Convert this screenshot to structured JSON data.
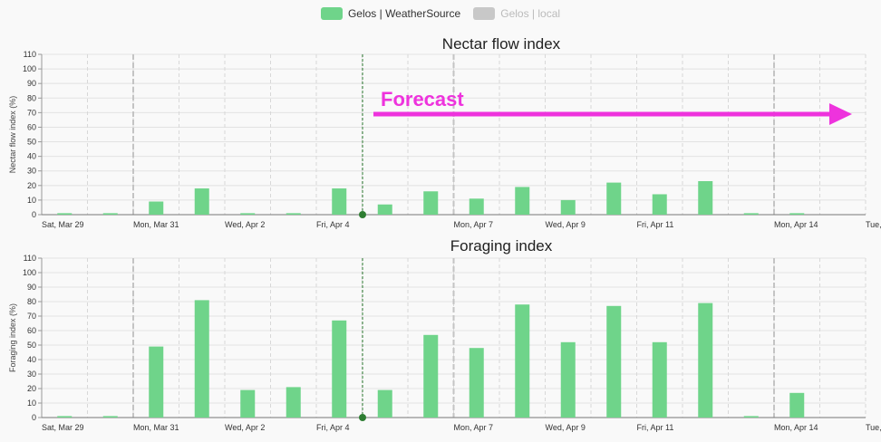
{
  "legend": [
    {
      "label": "Gelos | WeatherSource",
      "color": "#6fd48a",
      "active": true
    },
    {
      "label": "Gelos | local",
      "color": "#c8c8c8",
      "active": false
    }
  ],
  "forecast_label": "Forecast",
  "colors": {
    "bar": "#6fd48a",
    "today_line": "#2e7d32",
    "forecast_arrow": "#ee33dd"
  },
  "chart_data": [
    {
      "type": "bar",
      "title": "Nectar flow index",
      "ylabel": "Nectar flow index (%)",
      "ylim": [
        0,
        110
      ],
      "yticks": [
        0,
        10,
        20,
        30,
        40,
        50,
        60,
        70,
        80,
        90,
        100,
        110
      ],
      "x": [
        "2025-03-29",
        "2025-03-30",
        "2025-03-31",
        "2025-04-01",
        "2025-04-02",
        "2025-04-03",
        "2025-04-04",
        "2025-04-05",
        "2025-04-06",
        "2025-04-07",
        "2025-04-08",
        "2025-04-09",
        "2025-04-10",
        "2025-04-11",
        "2025-04-12",
        "2025-04-13",
        "2025-04-14",
        "2025-04-15"
      ],
      "xtick_labels": [
        "Sat, Mar 29",
        "Mon, Mar 31",
        "Wed, Apr 2",
        "Fri, Apr 4",
        "Mon, Apr 7",
        "Wed, Apr 9",
        "Fri, Apr 11",
        "Mon, Apr 14",
        "Tue,"
      ],
      "series": [
        {
          "name": "Gelos | WeatherSource",
          "values": [
            1,
            1,
            9,
            18,
            1,
            1,
            18,
            7,
            16,
            11,
            19,
            10,
            22,
            14,
            23,
            1,
            1,
            null
          ]
        }
      ]
    },
    {
      "type": "bar",
      "title": "Foraging index",
      "ylabel": "Foraging index (%)",
      "ylim": [
        0,
        110
      ],
      "yticks": [
        0,
        10,
        20,
        30,
        40,
        50,
        60,
        70,
        80,
        90,
        100,
        110
      ],
      "x": [
        "2025-03-29",
        "2025-03-30",
        "2025-03-31",
        "2025-04-01",
        "2025-04-02",
        "2025-04-03",
        "2025-04-04",
        "2025-04-05",
        "2025-04-06",
        "2025-04-07",
        "2025-04-08",
        "2025-04-09",
        "2025-04-10",
        "2025-04-11",
        "2025-04-12",
        "2025-04-13",
        "2025-04-14",
        "2025-04-15"
      ],
      "xtick_labels": [
        "Sat, Mar 29",
        "Mon, Mar 31",
        "Wed, Apr 2",
        "Fri, Apr 4",
        "Mon, Apr 7",
        "Wed, Apr 9",
        "Fri, Apr 11",
        "Mon, Apr 14",
        "Tue,"
      ],
      "series": [
        {
          "name": "Gelos | WeatherSource",
          "values": [
            1,
            1,
            49,
            81,
            19,
            21,
            67,
            19,
            57,
            48,
            78,
            52,
            77,
            52,
            79,
            1,
            17,
            null
          ]
        }
      ]
    }
  ]
}
